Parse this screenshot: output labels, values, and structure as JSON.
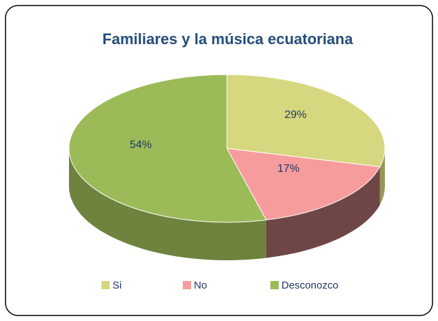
{
  "chart_data": {
    "type": "pie",
    "title": "Familiares y la música ecuatoriana",
    "categories": [
      "Si",
      "No",
      "Desconozco"
    ],
    "values": [
      29,
      17,
      54
    ],
    "value_labels": [
      "29%",
      "17%",
      "54%"
    ],
    "colors": [
      "#d7d77f",
      "#f79c9c",
      "#9bbb59"
    ],
    "legend": "bottom"
  }
}
